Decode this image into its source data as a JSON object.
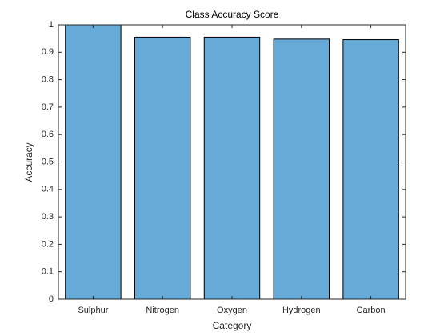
{
  "chart_data": {
    "type": "bar",
    "title": "Class Accuracy Score",
    "x_label": "Category",
    "y_label": "Accuracy",
    "categories": [
      "Sulphur",
      "Nitrogen",
      "Oxygen",
      "Hydrogen",
      "Carbon"
    ],
    "values": [
      1.0,
      0.955,
      0.955,
      0.948,
      0.946
    ],
    "color": "#66aad8",
    "ylim": [
      0,
      1
    ],
    "yticks": [
      0,
      0.1,
      0.2,
      0.3,
      0.4,
      0.5,
      0.6,
      0.7,
      0.8,
      0.9,
      1
    ],
    "grid": false
  }
}
